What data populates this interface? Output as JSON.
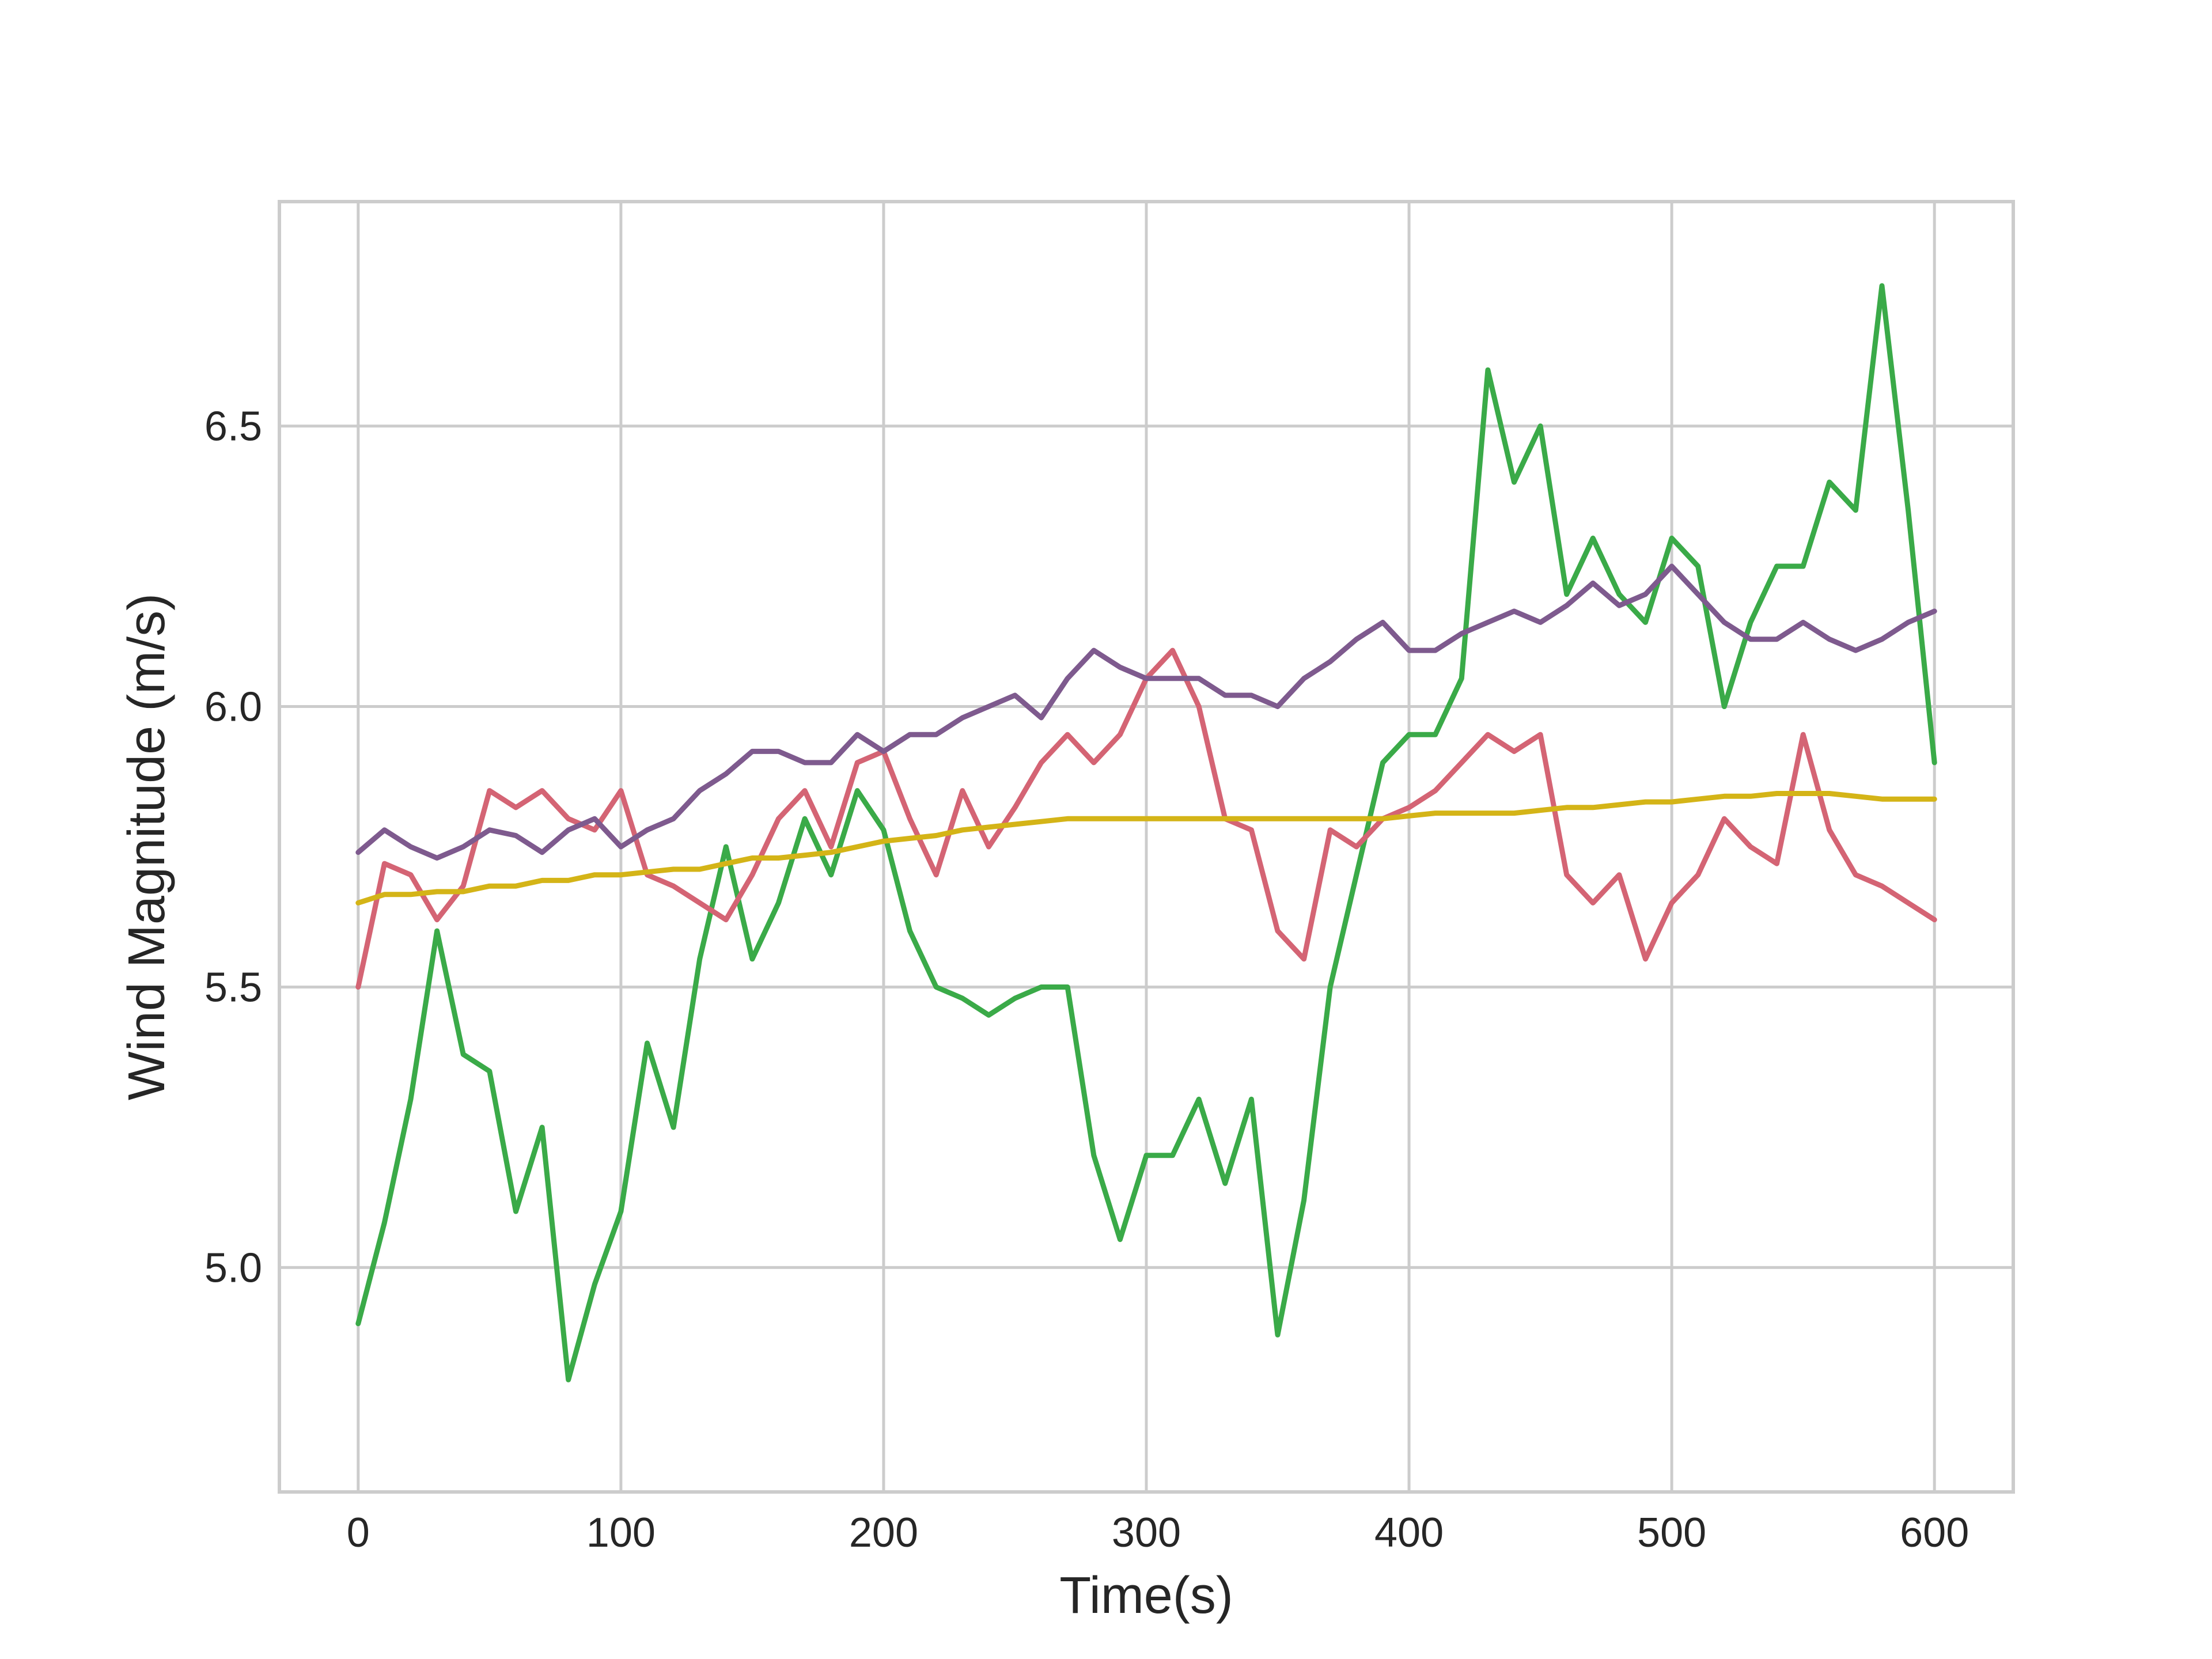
{
  "chart_data": {
    "type": "line",
    "title": "",
    "xlabel": "Time(s)",
    "ylabel": "Wind Magnitude (m/s)",
    "xlim": [
      -30,
      630
    ],
    "ylim": [
      4.6,
      6.9
    ],
    "xticks": [
      0,
      100,
      200,
      300,
      400,
      500,
      600
    ],
    "xtick_labels": [
      "0",
      "100",
      "200",
      "300",
      "400",
      "500",
      "600"
    ],
    "yticks": [
      5.0,
      5.5,
      6.0,
      6.5
    ],
    "ytick_labels": [
      "5.0",
      "5.5",
      "6.0",
      "6.5"
    ],
    "grid": true,
    "legend": "none",
    "x": [
      0,
      10,
      20,
      30,
      40,
      50,
      60,
      70,
      80,
      90,
      100,
      110,
      120,
      130,
      140,
      150,
      160,
      170,
      180,
      190,
      200,
      210,
      220,
      230,
      240,
      250,
      260,
      270,
      280,
      290,
      300,
      310,
      320,
      330,
      340,
      350,
      360,
      370,
      380,
      390,
      400,
      410,
      420,
      430,
      440,
      450,
      460,
      470,
      480,
      490,
      500,
      510,
      520,
      530,
      540,
      550,
      560,
      570,
      580,
      590,
      600
    ],
    "series": [
      {
        "color": "#3aaa48",
        "values": [
          4.9,
          5.08,
          5.3,
          5.6,
          5.38,
          5.35,
          5.1,
          5.25,
          4.8,
          4.97,
          5.1,
          5.4,
          5.25,
          5.55,
          5.75,
          5.55,
          5.65,
          5.8,
          5.7,
          5.85,
          5.78,
          5.6,
          5.5,
          5.48,
          5.45,
          5.48,
          5.5,
          5.5,
          5.2,
          5.05,
          5.2,
          5.2,
          5.3,
          5.15,
          5.3,
          4.88,
          5.12,
          5.5,
          5.7,
          5.9,
          5.95,
          5.95,
          6.05,
          6.6,
          6.4,
          6.5,
          6.2,
          6.3,
          6.2,
          6.15,
          6.3,
          6.25,
          6.0,
          6.15,
          6.25,
          6.25,
          6.4,
          6.35,
          6.75,
          6.35,
          5.9
        ]
      },
      {
        "color": "#d46474",
        "values": [
          5.5,
          5.72,
          5.7,
          5.62,
          5.68,
          5.85,
          5.82,
          5.85,
          5.8,
          5.78,
          5.85,
          5.7,
          5.68,
          5.65,
          5.62,
          5.7,
          5.8,
          5.85,
          5.75,
          5.9,
          5.92,
          5.8,
          5.7,
          5.85,
          5.75,
          5.82,
          5.9,
          5.95,
          5.9,
          5.95,
          6.05,
          6.1,
          6.0,
          5.8,
          5.78,
          5.6,
          5.55,
          5.78,
          5.75,
          5.8,
          5.82,
          5.85,
          5.9,
          5.95,
          5.92,
          5.95,
          5.7,
          5.65,
          5.7,
          5.55,
          5.65,
          5.7,
          5.8,
          5.75,
          5.72,
          5.95,
          5.78,
          5.7,
          5.68,
          5.65,
          5.62
        ]
      },
      {
        "color": "#7e5a8e",
        "values": [
          5.74,
          5.78,
          5.75,
          5.73,
          5.75,
          5.78,
          5.77,
          5.74,
          5.78,
          5.8,
          5.75,
          5.78,
          5.8,
          5.85,
          5.88,
          5.92,
          5.92,
          5.9,
          5.9,
          5.95,
          5.92,
          5.95,
          5.95,
          5.98,
          6.0,
          6.02,
          5.98,
          6.05,
          6.1,
          6.07,
          6.05,
          6.05,
          6.05,
          6.02,
          6.02,
          6.0,
          6.05,
          6.08,
          6.12,
          6.15,
          6.1,
          6.1,
          6.13,
          6.15,
          6.17,
          6.15,
          6.18,
          6.22,
          6.18,
          6.2,
          6.25,
          6.2,
          6.15,
          6.12,
          6.12,
          6.15,
          6.12,
          6.1,
          6.12,
          6.15,
          6.17
        ]
      },
      {
        "color": "#d4b417",
        "values": [
          5.65,
          5.665,
          5.665,
          5.67,
          5.67,
          5.68,
          5.68,
          5.69,
          5.69,
          5.7,
          5.7,
          5.705,
          5.71,
          5.71,
          5.72,
          5.73,
          5.73,
          5.735,
          5.74,
          5.75,
          5.76,
          5.765,
          5.77,
          5.78,
          5.785,
          5.79,
          5.795,
          5.8,
          5.8,
          5.8,
          5.8,
          5.8,
          5.8,
          5.8,
          5.8,
          5.8,
          5.8,
          5.8,
          5.8,
          5.8,
          5.805,
          5.81,
          5.81,
          5.81,
          5.81,
          5.815,
          5.82,
          5.82,
          5.825,
          5.83,
          5.83,
          5.835,
          5.84,
          5.84,
          5.845,
          5.845,
          5.845,
          5.84,
          5.835,
          5.835,
          5.835
        ]
      }
    ]
  }
}
